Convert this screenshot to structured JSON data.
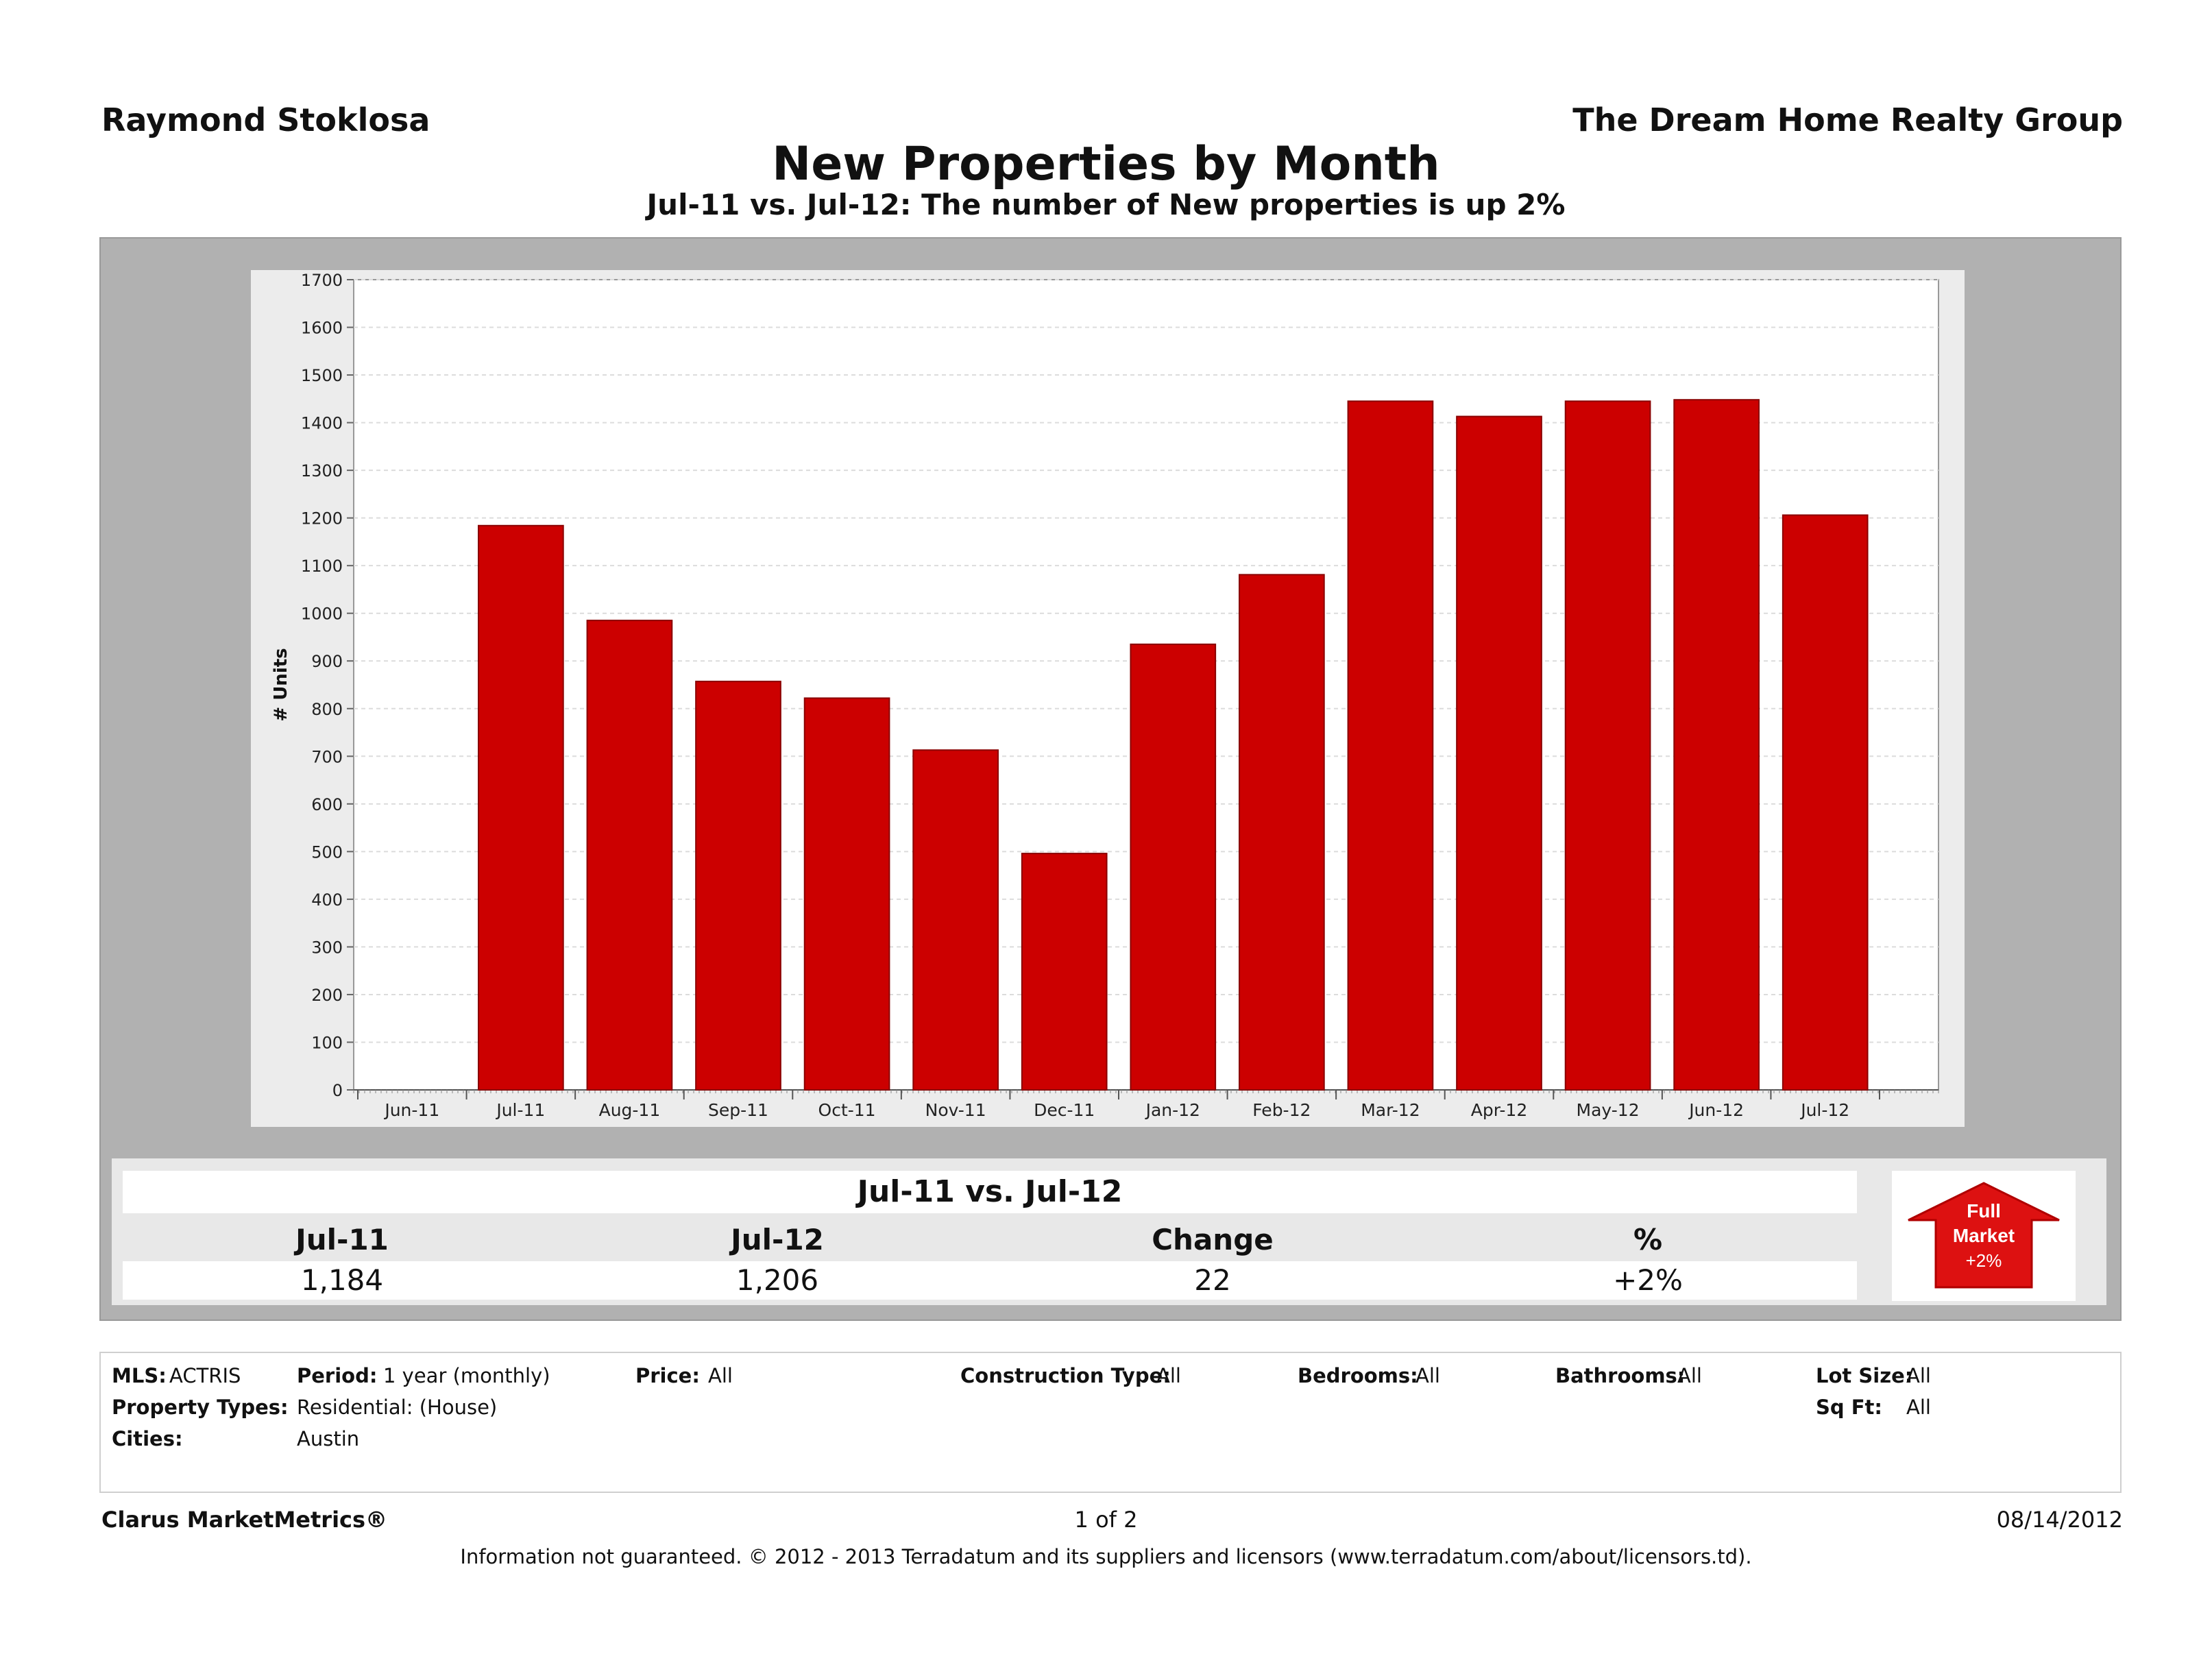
{
  "header": {
    "agent": "Raymond Stoklosa",
    "company": "The Dream Home Realty Group",
    "title": "New Properties by Month",
    "subtitle": "Jul-11 vs. Jul-12: The number of New properties is up 2%"
  },
  "chart_data": {
    "type": "bar",
    "ylabel": "# Units",
    "xlabel": "",
    "ylim": [
      0,
      1700
    ],
    "yticks": [
      0,
      100,
      200,
      300,
      400,
      500,
      600,
      700,
      800,
      900,
      1000,
      1100,
      1200,
      1300,
      1400,
      1500,
      1600,
      1700
    ],
    "categories": [
      "Jun-11",
      "Jul-11",
      "Aug-11",
      "Sep-11",
      "Oct-11",
      "Nov-11",
      "Dec-11",
      "Jan-12",
      "Feb-12",
      "Mar-12",
      "Apr-12",
      "May-12",
      "Jun-12",
      "Jul-12"
    ],
    "values": [
      null,
      1184,
      985,
      857,
      822,
      713,
      496,
      935,
      1081,
      1445,
      1413,
      1445,
      1448,
      1206
    ],
    "bar_color": "#cc0000",
    "grid": true
  },
  "summary": {
    "title": "Jul-11 vs. Jul-12",
    "headers": [
      "Jul-11",
      "Jul-12",
      "Change",
      "%"
    ],
    "values": [
      "1,184",
      "1,206",
      "22",
      "+2%"
    ]
  },
  "badge": {
    "line1": "Full",
    "line2": "Market",
    "line3": "+2%",
    "color": "#dd1111"
  },
  "criteria": {
    "mls_label": "MLS:",
    "mls_value": "ACTRIS",
    "period_label": "Period:",
    "period_value": "1 year (monthly)",
    "price_label": "Price:",
    "price_value": "All",
    "construction_label": "Construction Type:",
    "construction_value": "All",
    "bedrooms_label": "Bedrooms:",
    "bedrooms_value": "All",
    "bathrooms_label": "Bathrooms:",
    "bathrooms_value": "All",
    "lotsize_label": "Lot Size:",
    "lotsize_value": "All",
    "proptypes_label": "Property Types:",
    "proptypes_value": "Residential: (House)",
    "sqft_label": "Sq Ft:",
    "sqft_value": "All",
    "cities_label": "Cities:",
    "cities_value": "Austin"
  },
  "footer": {
    "brand": "Clarus MarketMetrics®",
    "page": "1 of 2",
    "date": "08/14/2012",
    "disclaimer": "Information not guaranteed.  © 2012 - 2013 Terradatum and its suppliers and licensors (www.terradatum.com/about/licensors.td)."
  }
}
